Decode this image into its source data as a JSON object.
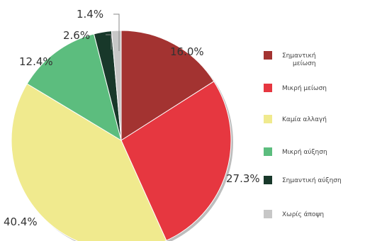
{
  "chart_data": {
    "type": "pie",
    "slices": [
      {
        "label": "Σημαντική μείωση",
        "label_lines": [
          "Σημαντική",
          "μείωση"
        ],
        "value": 16.0,
        "display": "16.0%",
        "color": "#a33331"
      },
      {
        "label": "Μικρή μείωση",
        "label_lines": [
          "Μικρή μείωση"
        ],
        "value": 27.3,
        "display": "27.3%",
        "color": "#e63740"
      },
      {
        "label": "Καμία αλλαγή",
        "label_lines": [
          "Καμία αλλαγή"
        ],
        "value": 40.4,
        "display": "40.4%",
        "color": "#f0ea8e"
      },
      {
        "label": "Μικρή αύξηση",
        "label_lines": [
          "Μικρή αύξηση"
        ],
        "value": 12.4,
        "display": "12.4%",
        "color": "#5cbd7e"
      },
      {
        "label": "Σημαντική αύξηση",
        "label_lines": [
          "Σημαντική αύξηση"
        ],
        "value": 2.6,
        "display": "2.6%",
        "color": "#18382a"
      },
      {
        "label": "Χωρίς άποψη",
        "label_lines": [
          "Χωρίς άποψη"
        ],
        "value": 1.4,
        "display": "1.4%",
        "color": "#c7c7c7"
      }
    ],
    "start_direction": "top",
    "order": "clockwise",
    "legend_position": "right"
  }
}
